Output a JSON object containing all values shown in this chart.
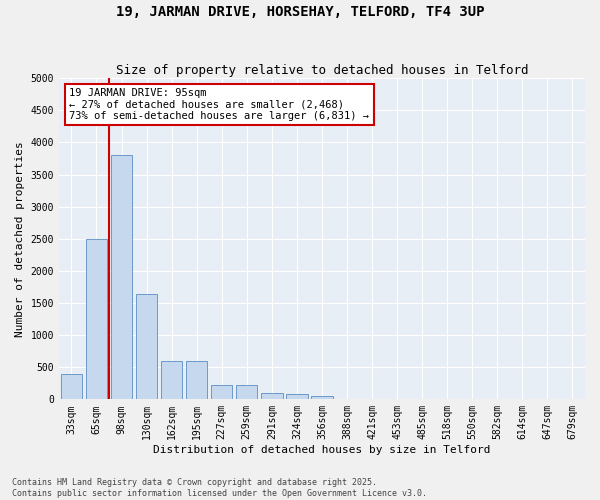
{
  "title": "19, JARMAN DRIVE, HORSEHAY, TELFORD, TF4 3UP",
  "subtitle": "Size of property relative to detached houses in Telford",
  "xlabel": "Distribution of detached houses by size in Telford",
  "ylabel": "Number of detached properties",
  "categories": [
    "33sqm",
    "65sqm",
    "98sqm",
    "130sqm",
    "162sqm",
    "195sqm",
    "227sqm",
    "259sqm",
    "291sqm",
    "324sqm",
    "356sqm",
    "388sqm",
    "421sqm",
    "453sqm",
    "485sqm",
    "518sqm",
    "550sqm",
    "582sqm",
    "614sqm",
    "647sqm",
    "679sqm"
  ],
  "values": [
    390,
    2500,
    3800,
    1640,
    590,
    590,
    220,
    220,
    100,
    80,
    50,
    0,
    0,
    0,
    0,
    0,
    0,
    0,
    0,
    0,
    0
  ],
  "bar_color": "#c5d8ed",
  "bar_edge_color": "#5b8ec4",
  "vline_x": 1.5,
  "vline_color": "#cc0000",
  "annotation_text": "19 JARMAN DRIVE: 95sqm\n← 27% of detached houses are smaller (2,468)\n73% of semi-detached houses are larger (6,831) →",
  "annotation_box_color": "#cc0000",
  "ylim": [
    0,
    5000
  ],
  "yticks": [
    0,
    500,
    1000,
    1500,
    2000,
    2500,
    3000,
    3500,
    4000,
    4500,
    5000
  ],
  "bg_color": "#e8eef6",
  "grid_color": "#ffffff",
  "fig_bg_color": "#f0f0f0",
  "footnote": "Contains HM Land Registry data © Crown copyright and database right 2025.\nContains public sector information licensed under the Open Government Licence v3.0.",
  "title_fontsize": 10,
  "subtitle_fontsize": 9,
  "axis_label_fontsize": 8,
  "tick_fontsize": 7,
  "annotation_fontsize": 7.5,
  "footnote_fontsize": 6
}
